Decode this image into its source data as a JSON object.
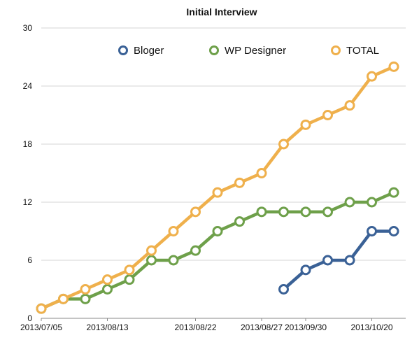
{
  "chart_data": {
    "type": "line",
    "title": "Initial Interview",
    "xlabel": "",
    "ylabel": "",
    "ylim": [
      0,
      30
    ],
    "yticks": [
      "0",
      "6",
      "12",
      "18",
      "24",
      "30"
    ],
    "grid": true,
    "legend_position": "top",
    "x_tick_labels": [
      {
        "label": "2013/07/05",
        "index": 0
      },
      {
        "label": "2013/08/13",
        "index": 3
      },
      {
        "label": "2013/08/22",
        "index": 7
      },
      {
        "label": "2013/08/27",
        "index": 10
      },
      {
        "label": "2013/09/30",
        "index": 12
      },
      {
        "label": "2013/10/20",
        "index": 15
      }
    ],
    "point_count": 17,
    "series": [
      {
        "name": "Bloger",
        "color": "#3a6196",
        "values": [
          null,
          null,
          null,
          null,
          null,
          null,
          null,
          null,
          null,
          null,
          null,
          3,
          5,
          6,
          6,
          9,
          9
        ]
      },
      {
        "name": "WP Designer",
        "color": "#6ea04a",
        "values": [
          1,
          2,
          2,
          3,
          4,
          6,
          6,
          7,
          9,
          10,
          11,
          11,
          11,
          11,
          12,
          12,
          13
        ]
      },
      {
        "name": "TOTAL",
        "color": "#efb04c",
        "values": [
          1,
          2,
          3,
          4,
          5,
          7,
          9,
          11,
          13,
          14,
          15,
          18,
          20,
          21,
          22,
          25,
          26
        ]
      }
    ]
  }
}
